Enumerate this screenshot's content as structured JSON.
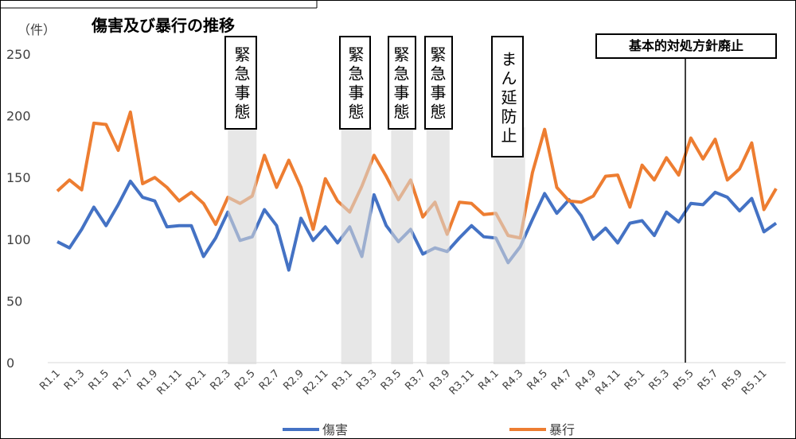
{
  "chart_data": {
    "type": "line",
    "title": "傷害及び暴行の推移",
    "y_label": "（件）",
    "categories": [
      "R1.1",
      null,
      "R1.3",
      null,
      "R1.5",
      null,
      "R1.7",
      null,
      "R1.9",
      null,
      "R1.11",
      null,
      "R2.1",
      null,
      "R2.3",
      null,
      "R2.5",
      null,
      "R2.7",
      null,
      "R2.9",
      null,
      "R2.11",
      null,
      "R3.1",
      null,
      "R3.3",
      null,
      "R3.5",
      null,
      "R3.7",
      null,
      "R3.9",
      null,
      "R3.11",
      null,
      "R4.1",
      null,
      "R4.3",
      null,
      "R4.5",
      null,
      "R4.7",
      null,
      "R4.9",
      null,
      "R4.11",
      null,
      "R5.1",
      null,
      "R5.3",
      null,
      "R5.5",
      null,
      "R5.7",
      null,
      "R5.9",
      null,
      "R5.11",
      null
    ],
    "series": [
      {
        "name": "傷害",
        "color": "#4472c4",
        "values": [
          98,
          93,
          108,
          126,
          111,
          128,
          147,
          134,
          131,
          110,
          111,
          111,
          86,
          101,
          122,
          99,
          102,
          124,
          111,
          75,
          117,
          99,
          110,
          97,
          110,
          86,
          136,
          111,
          98,
          108,
          88,
          93,
          90,
          101,
          111,
          102,
          101,
          81,
          94,
          116,
          137,
          121,
          132,
          119,
          100,
          109,
          97,
          113,
          115,
          103,
          122,
          114,
          129,
          128,
          138,
          134,
          123,
          133,
          106,
          113
        ]
      },
      {
        "name": "暴行",
        "color": "#ed7d31",
        "values": [
          139,
          148,
          140,
          194,
          193,
          172,
          203,
          145,
          150,
          142,
          131,
          138,
          129,
          112,
          134,
          129,
          135,
          168,
          142,
          164,
          142,
          108,
          149,
          131,
          122,
          143,
          168,
          151,
          132,
          148,
          118,
          130,
          104,
          130,
          129,
          120,
          121,
          103,
          101,
          154,
          189,
          142,
          131,
          130,
          135,
          151,
          152,
          126,
          160,
          148,
          166,
          152,
          182,
          165,
          181,
          148,
          157,
          178,
          124,
          141
        ]
      }
    ],
    "ylim": [
      0,
      250
    ],
    "yticks": [
      0,
      50,
      100,
      150,
      200,
      250
    ],
    "shaded_periods": [
      "緊急事態",
      "緊急事態",
      "緊急事態",
      "緊急事態",
      "まん延防止"
    ],
    "marker_line_label": "基本的対処方針廃止",
    "legend": "bottom",
    "grid": false
  }
}
